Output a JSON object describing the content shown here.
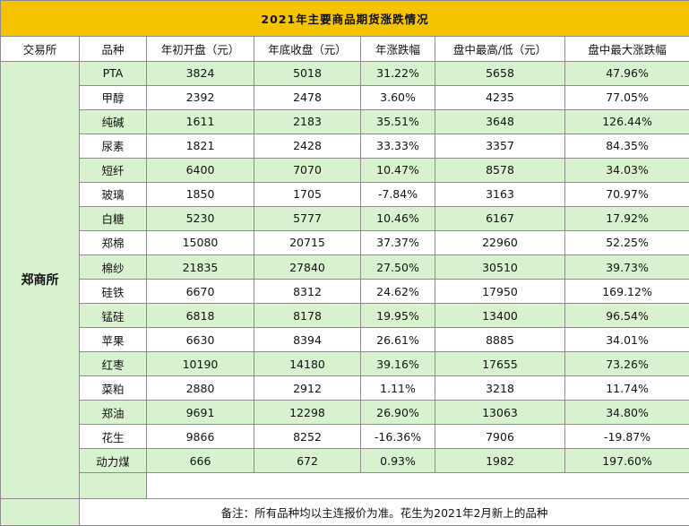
{
  "title": "2021年主要商品期货涨跌情况",
  "headers": [
    "交易所",
    "品种",
    "年初开盘（元）",
    "年底收盘（元）",
    "年涨跌幅",
    "盘中最高/低（元）",
    "盘中最大涨跌幅"
  ],
  "exchange": "郑商所",
  "rows": [
    [
      "PTA",
      "3824",
      "5018",
      "31.22%",
      "5658",
      "47.96%"
    ],
    [
      "甲醇",
      "2392",
      "2478",
      "3.60%",
      "4235",
      "77.05%"
    ],
    [
      "纯碱",
      "1611",
      "2183",
      "35.51%",
      "3648",
      "126.44%"
    ],
    [
      "尿素",
      "1821",
      "2428",
      "33.33%",
      "3357",
      "84.35%"
    ],
    [
      "短纤",
      "6400",
      "7070",
      "10.47%",
      "8578",
      "34.03%"
    ],
    [
      "玻璃",
      "1850",
      "1705",
      "-7.84%",
      "3163",
      "70.97%"
    ],
    [
      "白糖",
      "5230",
      "5777",
      "10.46%",
      "6167",
      "17.92%"
    ],
    [
      "郑棉",
      "15080",
      "20715",
      "37.37%",
      "22960",
      "52.25%"
    ],
    [
      "棉纱",
      "21835",
      "27840",
      "27.50%",
      "30510",
      "39.73%"
    ],
    [
      "硅铁",
      "6670",
      "8312",
      "24.62%",
      "17950",
      "169.12%"
    ],
    [
      "锰硅",
      "6818",
      "8178",
      "19.95%",
      "13400",
      "96.54%"
    ],
    [
      "苹果",
      "6630",
      "8394",
      "26.61%",
      "8885",
      "34.01%"
    ],
    [
      "红枣",
      "10190",
      "14180",
      "39.16%",
      "17655",
      "73.26%"
    ],
    [
      "菜粕",
      "2880",
      "2912",
      "1.11%",
      "3218",
      "11.74%"
    ],
    [
      "郑油",
      "9691",
      "12298",
      "26.90%",
      "13063",
      "34.80%"
    ],
    [
      "花生",
      "9866",
      "8252",
      "-16.36%",
      "7906",
      "-19.87%"
    ],
    [
      "动力煤",
      "666",
      "672",
      "0.93%",
      "1982",
      "197.60%"
    ]
  ],
  "note": "备注：所有品种均以主连报价为准。花生为2021年2月新上的品种",
  "colors": {
    "title_bg": "#f5c400",
    "green_row": "#d8f1cf",
    "white_row": "#ffffff"
  }
}
